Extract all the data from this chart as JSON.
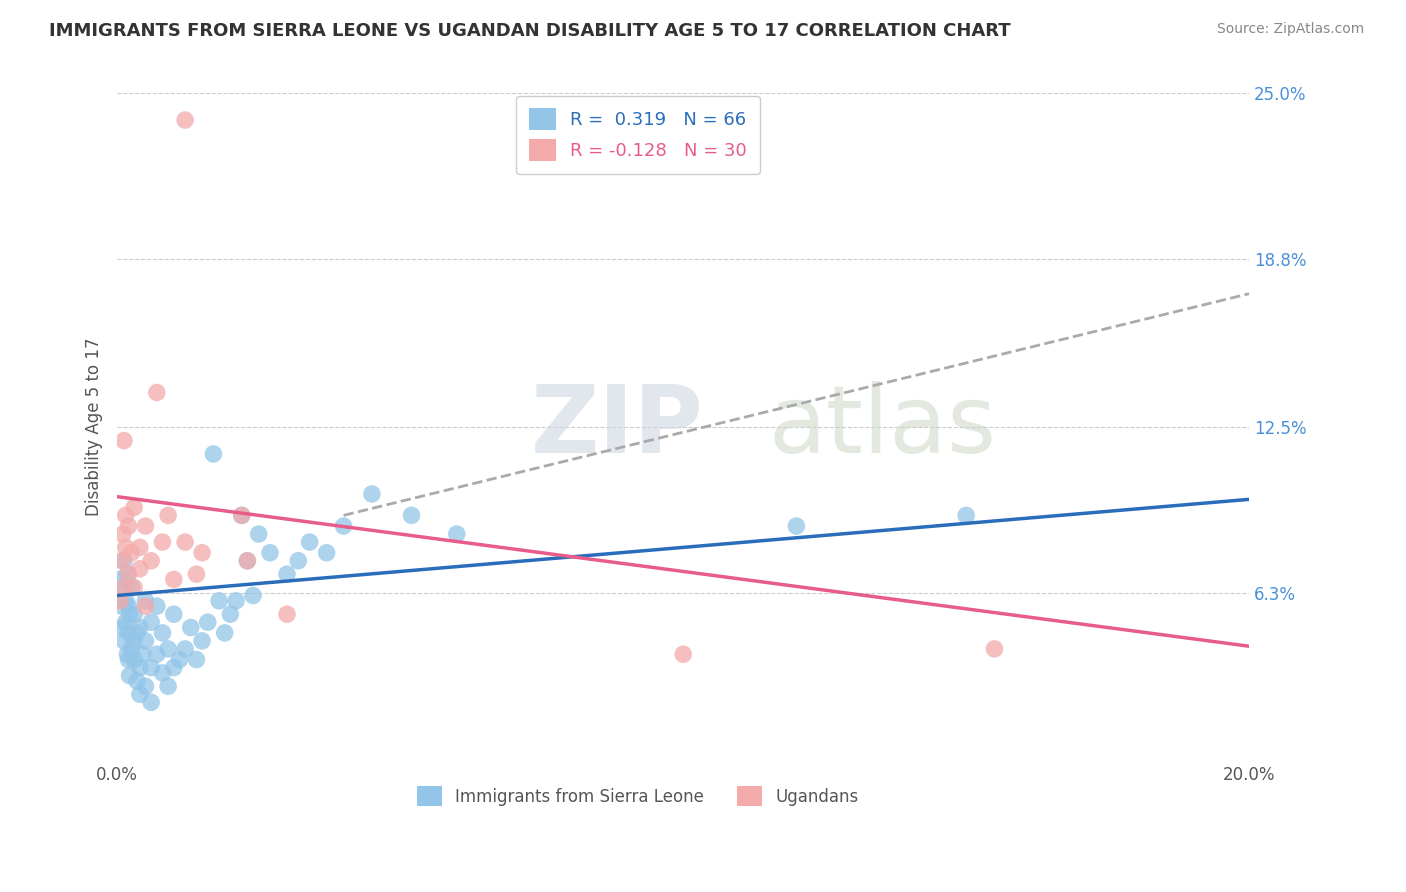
{
  "title": "IMMIGRANTS FROM SIERRA LEONE VS UGANDAN DISABILITY AGE 5 TO 17 CORRELATION CHART",
  "source": "Source: ZipAtlas.com",
  "ylabel": "Disability Age 5 to 17",
  "r_blue": 0.319,
  "n_blue": 66,
  "r_pink": -0.128,
  "n_pink": 30,
  "xlim": [
    0.0,
    0.2
  ],
  "ylim": [
    0.0,
    0.25
  ],
  "xticks": [
    0.0,
    0.05,
    0.1,
    0.15,
    0.2
  ],
  "xticklabels": [
    "0.0%",
    "",
    "",
    "",
    "20.0%"
  ],
  "yticks_right": [
    0.063,
    0.125,
    0.188,
    0.25
  ],
  "yticklabels_right": [
    "6.3%",
    "12.5%",
    "18.8%",
    "25.0%"
  ],
  "color_blue": "#92C5E8",
  "color_pink": "#F4AAAA",
  "color_trend_blue": "#2A6EBB",
  "color_trend_pink": "#E85C8A",
  "color_trend_dashed": "#AAAAAA",
  "watermark_zip": "ZIP",
  "watermark_atlas": "atlas",
  "blue_scatter": [
    [
      0.0005,
      0.068
    ],
    [
      0.0008,
      0.058
    ],
    [
      0.001,
      0.05
    ],
    [
      0.001,
      0.065
    ],
    [
      0.0012,
      0.045
    ],
    [
      0.0012,
      0.075
    ],
    [
      0.0015,
      0.06
    ],
    [
      0.0015,
      0.052
    ],
    [
      0.0018,
      0.04
    ],
    [
      0.0018,
      0.07
    ],
    [
      0.002,
      0.048
    ],
    [
      0.002,
      0.058
    ],
    [
      0.002,
      0.038
    ],
    [
      0.0022,
      0.055
    ],
    [
      0.0022,
      0.032
    ],
    [
      0.0025,
      0.042
    ],
    [
      0.0025,
      0.065
    ],
    [
      0.003,
      0.038
    ],
    [
      0.003,
      0.055
    ],
    [
      0.003,
      0.045
    ],
    [
      0.0035,
      0.03
    ],
    [
      0.0035,
      0.048
    ],
    [
      0.004,
      0.035
    ],
    [
      0.004,
      0.05
    ],
    [
      0.004,
      0.025
    ],
    [
      0.0045,
      0.04
    ],
    [
      0.005,
      0.028
    ],
    [
      0.005,
      0.045
    ],
    [
      0.005,
      0.06
    ],
    [
      0.006,
      0.035
    ],
    [
      0.006,
      0.052
    ],
    [
      0.006,
      0.022
    ],
    [
      0.007,
      0.04
    ],
    [
      0.007,
      0.058
    ],
    [
      0.008,
      0.033
    ],
    [
      0.008,
      0.048
    ],
    [
      0.009,
      0.028
    ],
    [
      0.009,
      0.042
    ],
    [
      0.01,
      0.035
    ],
    [
      0.01,
      0.055
    ],
    [
      0.011,
      0.038
    ],
    [
      0.012,
      0.042
    ],
    [
      0.013,
      0.05
    ],
    [
      0.014,
      0.038
    ],
    [
      0.015,
      0.045
    ],
    [
      0.016,
      0.052
    ],
    [
      0.017,
      0.115
    ],
    [
      0.018,
      0.06
    ],
    [
      0.019,
      0.048
    ],
    [
      0.02,
      0.055
    ],
    [
      0.021,
      0.06
    ],
    [
      0.022,
      0.092
    ],
    [
      0.023,
      0.075
    ],
    [
      0.024,
      0.062
    ],
    [
      0.025,
      0.085
    ],
    [
      0.027,
      0.078
    ],
    [
      0.03,
      0.07
    ],
    [
      0.032,
      0.075
    ],
    [
      0.034,
      0.082
    ],
    [
      0.037,
      0.078
    ],
    [
      0.04,
      0.088
    ],
    [
      0.045,
      0.1
    ],
    [
      0.052,
      0.092
    ],
    [
      0.06,
      0.085
    ],
    [
      0.12,
      0.088
    ],
    [
      0.15,
      0.092
    ]
  ],
  "pink_scatter": [
    [
      0.0005,
      0.06
    ],
    [
      0.0008,
      0.075
    ],
    [
      0.001,
      0.085
    ],
    [
      0.001,
      0.065
    ],
    [
      0.0012,
      0.12
    ],
    [
      0.0015,
      0.08
    ],
    [
      0.0015,
      0.092
    ],
    [
      0.002,
      0.07
    ],
    [
      0.002,
      0.088
    ],
    [
      0.0025,
      0.078
    ],
    [
      0.003,
      0.095
    ],
    [
      0.003,
      0.065
    ],
    [
      0.004,
      0.08
    ],
    [
      0.004,
      0.072
    ],
    [
      0.005,
      0.088
    ],
    [
      0.005,
      0.058
    ],
    [
      0.006,
      0.075
    ],
    [
      0.007,
      0.138
    ],
    [
      0.008,
      0.082
    ],
    [
      0.009,
      0.092
    ],
    [
      0.01,
      0.068
    ],
    [
      0.012,
      0.082
    ],
    [
      0.014,
      0.07
    ],
    [
      0.015,
      0.078
    ],
    [
      0.022,
      0.092
    ],
    [
      0.023,
      0.075
    ],
    [
      0.1,
      0.04
    ],
    [
      0.155,
      0.042
    ],
    [
      0.012,
      0.24
    ],
    [
      0.03,
      0.055
    ]
  ],
  "blue_trend_x": [
    0.0,
    0.2
  ],
  "blue_trend_y": [
    0.062,
    0.098
  ],
  "pink_trend_x": [
    0.0,
    0.2
  ],
  "pink_trend_y": [
    0.099,
    0.043
  ],
  "dashed_trend_x": [
    0.04,
    0.2
  ],
  "dashed_trend_y": [
    0.092,
    0.175
  ]
}
